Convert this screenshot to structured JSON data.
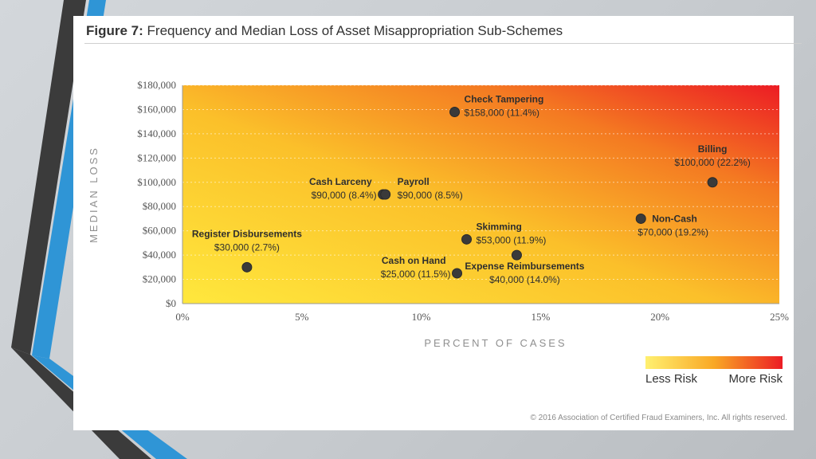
{
  "figure": {
    "label": "Figure 7:",
    "title": "Frequency and Median Loss of Asset Misappropriation Sub-Schemes"
  },
  "copyright": "© 2016 Association of Certified Fraud Examiners, Inc. All rights reserved.",
  "colors": {
    "gradient_low": "#ffe03a",
    "gradient_mid": "#f7a024",
    "gradient_high": "#ec1c24",
    "point": "#3a3a3a"
  },
  "chart_data": {
    "type": "scatter",
    "xlabel": "PERCENT OF CASES",
    "ylabel": "MEDIAN LOSS",
    "xlim": [
      0,
      25
    ],
    "ylim": [
      0,
      180000
    ],
    "x_ticks": [
      {
        "value": 0,
        "label": "0%"
      },
      {
        "value": 5,
        "label": "5%"
      },
      {
        "value": 10,
        "label": "10%"
      },
      {
        "value": 15,
        "label": "15%"
      },
      {
        "value": 20,
        "label": "20%"
      },
      {
        "value": 25,
        "label": "25%"
      }
    ],
    "y_ticks": [
      {
        "value": 0,
        "label": "$0"
      },
      {
        "value": 20000,
        "label": "$20,000"
      },
      {
        "value": 40000,
        "label": "$40,000"
      },
      {
        "value": 60000,
        "label": "$60,000"
      },
      {
        "value": 80000,
        "label": "$80,000"
      },
      {
        "value": 100000,
        "label": "$100,000"
      },
      {
        "value": 120000,
        "label": "$120,000"
      },
      {
        "value": 140000,
        "label": "$140,000"
      },
      {
        "value": 160000,
        "label": "$160,000"
      },
      {
        "value": 180000,
        "label": "$180,000"
      }
    ],
    "grid": true,
    "points": [
      {
        "name": "Check Tampering",
        "value_label": "$158,000 (11.4%)",
        "x": 11.4,
        "y": 158000,
        "label_pos": "right-top"
      },
      {
        "name": "Billing",
        "value_label": "$100,000 (22.2%)",
        "x": 22.2,
        "y": 100000,
        "label_pos": "above"
      },
      {
        "name": "Cash Larceny",
        "value_label": "$90,000 (8.4%)",
        "x": 8.4,
        "y": 90000,
        "label_pos": "left"
      },
      {
        "name": "Payroll",
        "value_label": "$90,000 (8.5%)",
        "x": 8.5,
        "y": 90000,
        "label_pos": "right"
      },
      {
        "name": "Non-Cash",
        "value_label": "$70,000 (19.2%)",
        "x": 19.2,
        "y": 70000,
        "label_pos": "right-below"
      },
      {
        "name": "Skimming",
        "value_label": "$53,000 (11.9%)",
        "x": 11.9,
        "y": 53000,
        "label_pos": "right-top"
      },
      {
        "name": "Register Disbursements",
        "value_label": "$30,000 (2.7%)",
        "x": 2.7,
        "y": 30000,
        "label_pos": "above"
      },
      {
        "name": "Expense Reimbursements",
        "value_label": "$40,000 (14.0%)",
        "x": 14.0,
        "y": 40000,
        "label_pos": "below"
      },
      {
        "name": "Cash on Hand",
        "value_label": "$25,000 (11.5%)",
        "x": 11.5,
        "y": 25000,
        "label_pos": "left"
      }
    ],
    "legend": {
      "placement": "bottom-right",
      "low_label": "Less Risk",
      "high_label": "More Risk"
    }
  }
}
